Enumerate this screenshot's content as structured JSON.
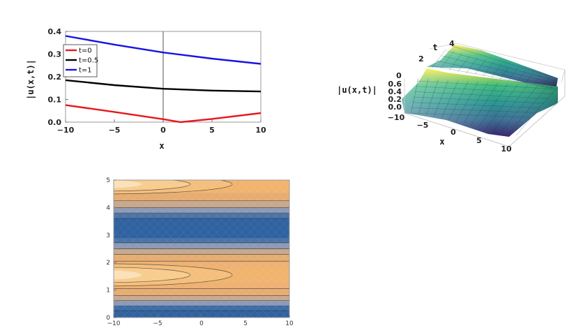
{
  "chart_data": [
    {
      "type": "line",
      "title": "",
      "xlabel": "x",
      "ylabel": "|u(x,t)|",
      "xlim": [
        -10,
        10
      ],
      "ylim": [
        0,
        0.4
      ],
      "xticks": [
        "−10",
        "−5",
        "0",
        "5",
        "10"
      ],
      "yticks": [
        "0.0",
        "0.1",
        "0.2",
        "0.3",
        "0.4"
      ],
      "legend": "top-left",
      "grid": false,
      "series": [
        {
          "name": "t=0",
          "color": "#e8161c",
          "x": [
            -10,
            -5,
            0,
            1.8,
            5,
            10
          ],
          "y": [
            0.075,
            0.045,
            0.013,
            0.0,
            0.014,
            0.04
          ]
        },
        {
          "name": "t=0.5",
          "color": "#000000",
          "x": [
            -10,
            -5,
            0,
            5,
            10
          ],
          "y": [
            0.185,
            0.163,
            0.147,
            0.139,
            0.135
          ]
        },
        {
          "name": "t=1",
          "color": "#1a14e0",
          "x": [
            -10,
            -5,
            0,
            5,
            10
          ],
          "y": [
            0.38,
            0.342,
            0.307,
            0.28,
            0.257
          ]
        }
      ]
    },
    {
      "type": "surface",
      "title": "",
      "xlabel": "x",
      "ylabel": "t",
      "zlabel": "|u(x,t)|",
      "xlim": [
        -10,
        10
      ],
      "ylim": [
        0,
        4
      ],
      "zlim": [
        0,
        0.6
      ],
      "xticks": [
        "−10",
        "−5",
        "0",
        "5",
        "10"
      ],
      "yticks": [
        "0",
        "2",
        "4"
      ],
      "zticks": [
        "0.0",
        "0.2",
        "0.4",
        "0.6"
      ],
      "colormap": "viridis"
    },
    {
      "type": "contour",
      "title": "",
      "xlim": [
        -10,
        10
      ],
      "ylim": [
        0,
        5
      ],
      "xticks": [
        "−10",
        "−5",
        "0",
        "5",
        "10"
      ],
      "yticks": [
        "0",
        "1",
        "2",
        "3",
        "4",
        "5"
      ],
      "grid": false
    }
  ]
}
